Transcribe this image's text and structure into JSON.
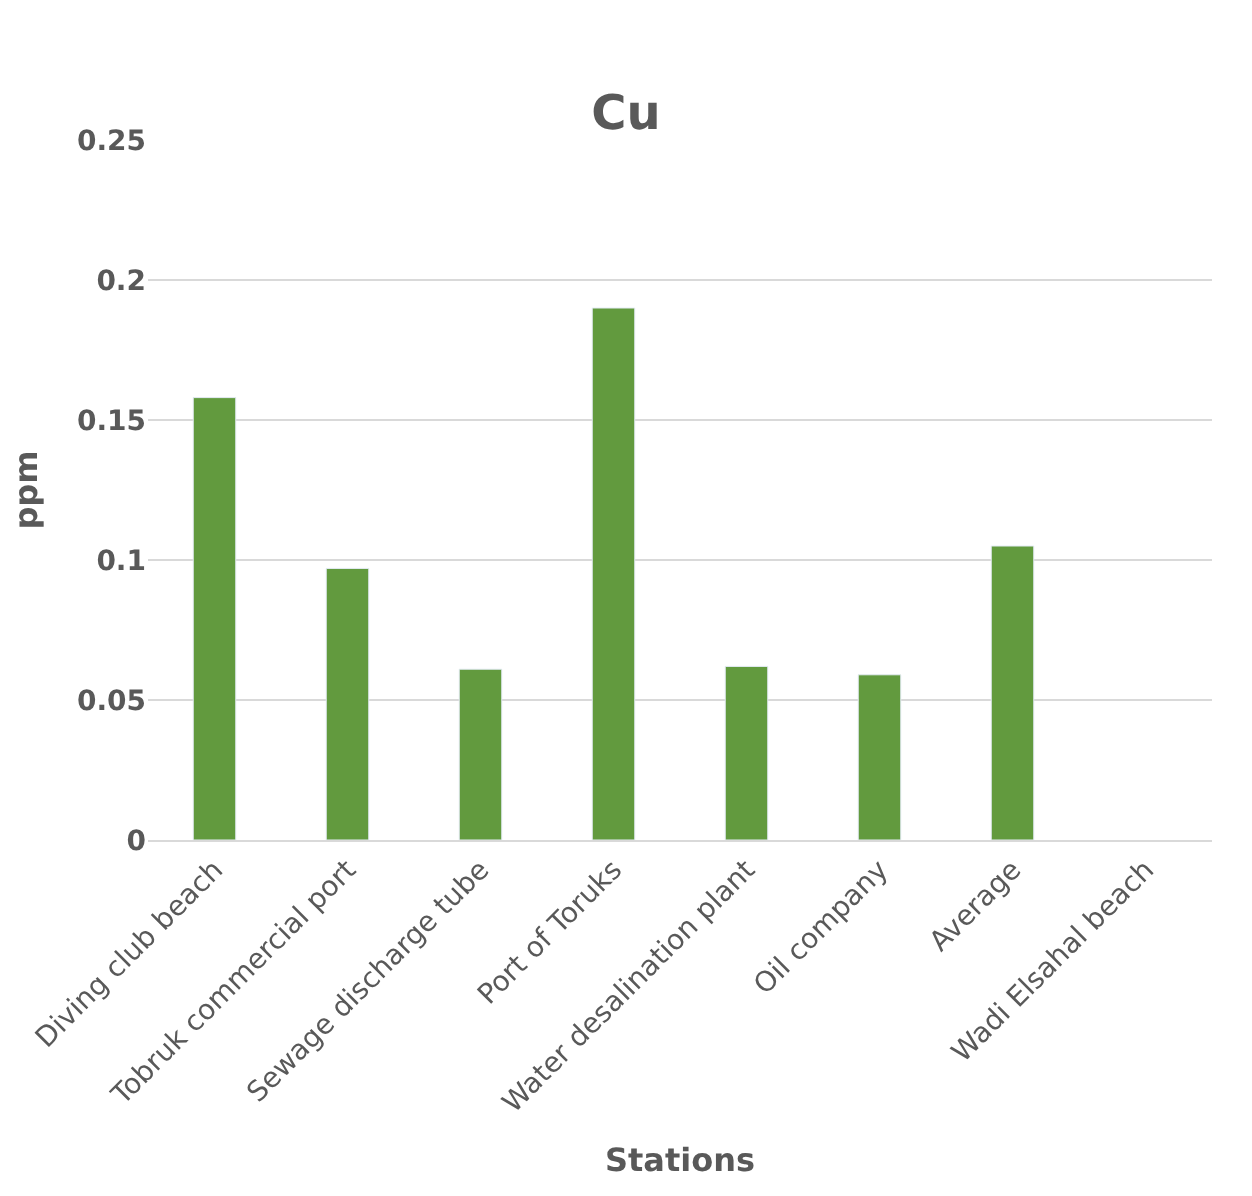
{
  "chart_data": {
    "type": "bar",
    "title": "Cu",
    "xlabel": "Stations",
    "ylabel": "ppm",
    "categories": [
      "Diving club beach",
      "Tobruk commercial port",
      "Sewage discharge tube",
      "Port of Toruks",
      "Water desalination plant",
      "Oil company",
      "Average",
      "Wadi Elsahal beach"
    ],
    "values": [
      0.158,
      0.097,
      0.061,
      0.19,
      0.062,
      0.059,
      0.105,
      null
    ],
    "color": "#629a3e",
    "ylim": [
      0,
      0.25
    ],
    "yticks": [
      0,
      0.05,
      0.1,
      0.15,
      0.2,
      0.25
    ],
    "grid": "y",
    "legend": false
  }
}
